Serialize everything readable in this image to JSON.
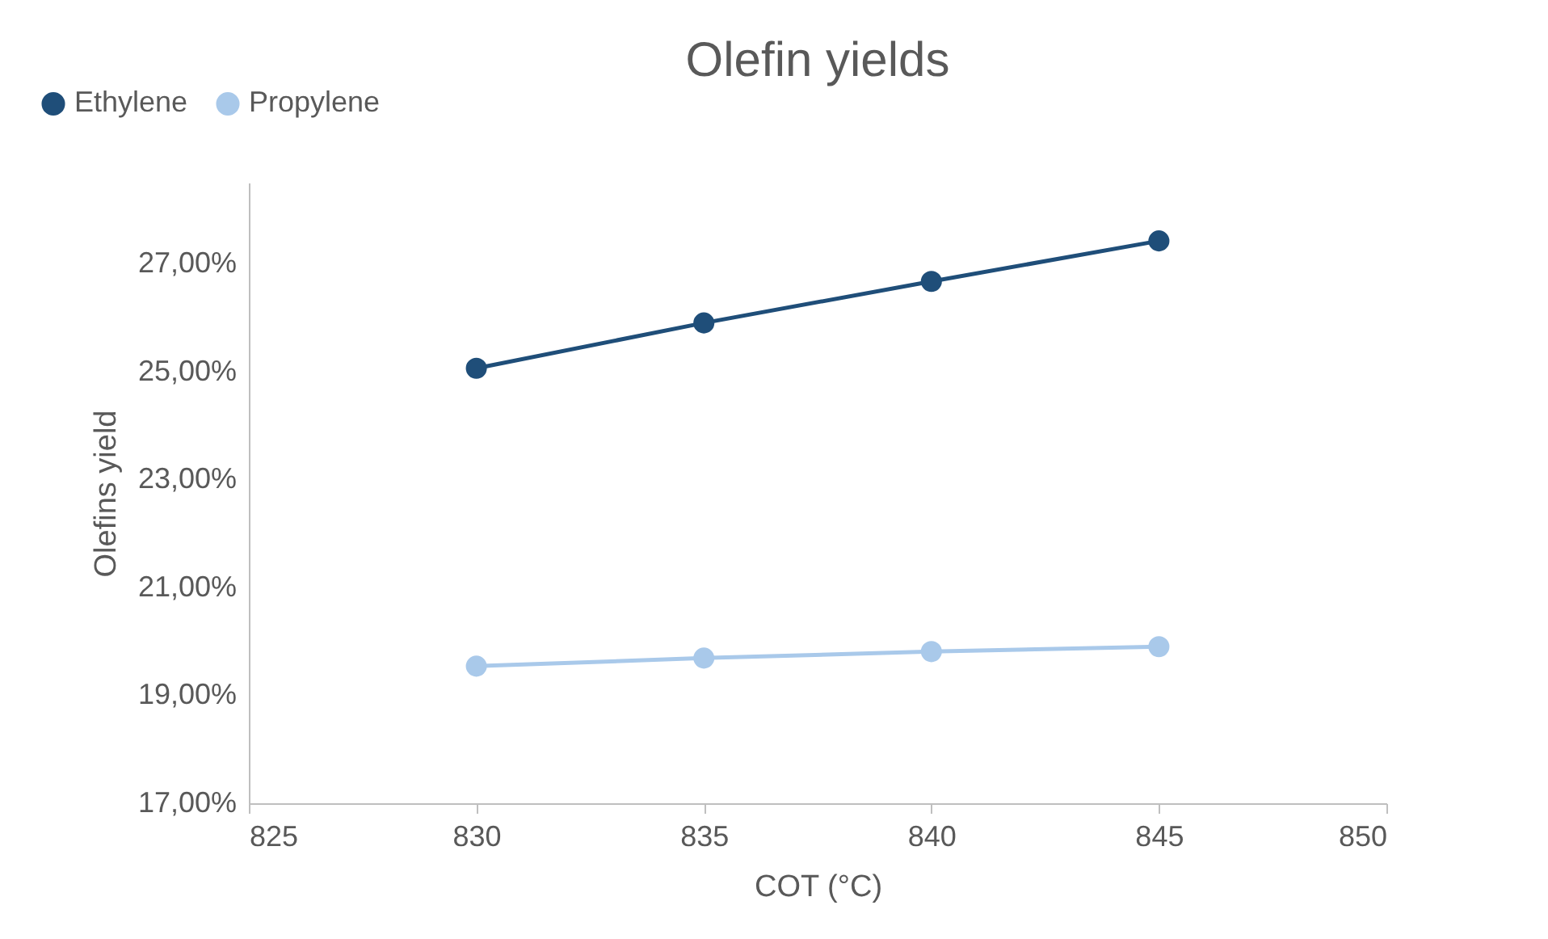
{
  "chart_data": {
    "type": "line",
    "title": "Olefin yields",
    "xlabel": "COT (°C)",
    "ylabel": "Olefins yield",
    "x": [
      830,
      835,
      840,
      845
    ],
    "series": [
      {
        "name": "Ethylene",
        "color": "#1f4e79",
        "values": [
          25.06,
          25.9,
          26.67,
          27.42
        ]
      },
      {
        "name": "Propylene",
        "color": "#a9c9ea",
        "values": [
          19.54,
          19.69,
          19.81,
          19.9
        ]
      }
    ],
    "xlim": [
      825,
      850
    ],
    "xticks": [
      825,
      830,
      835,
      840,
      845,
      850
    ],
    "ylim": [
      17,
      28.5
    ],
    "yticks": [
      {
        "value": 17,
        "label": "17,00%"
      },
      {
        "value": 19,
        "label": "19,00%"
      },
      {
        "value": 21,
        "label": "21,00%"
      },
      {
        "value": 23,
        "label": "23,00%"
      },
      {
        "value": 25,
        "label": "25,00%"
      },
      {
        "value": 27,
        "label": "27,00%"
      }
    ],
    "grid": false,
    "legend": "top left",
    "marker": "circle",
    "line_style": "solid"
  }
}
